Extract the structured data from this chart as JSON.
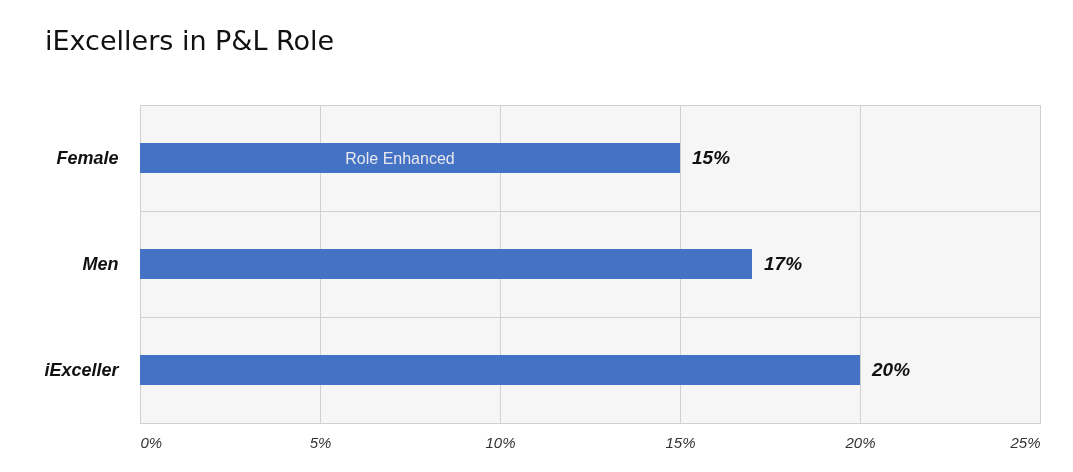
{
  "chart_data": {
    "type": "bar",
    "orientation": "horizontal",
    "title": "iExcellers in P&L Role",
    "categories": [
      "Female",
      "Men",
      "iExceller"
    ],
    "values": [
      15,
      17,
      20
    ],
    "color": "#4472c4",
    "value_labels": [
      "15%",
      "17%",
      "20%"
    ],
    "xlim": [
      0,
      25
    ],
    "xticks": [
      {
        "value": 0,
        "label": "0%"
      },
      {
        "value": 5,
        "label": "5%"
      },
      {
        "value": 10,
        "label": "10%"
      },
      {
        "value": 15,
        "label": "15%"
      },
      {
        "value": 20,
        "label": "20%"
      },
      {
        "value": 25,
        "label": "25%"
      }
    ],
    "annotations": [
      "Role Enhanced"
    ],
    "grid": true
  }
}
